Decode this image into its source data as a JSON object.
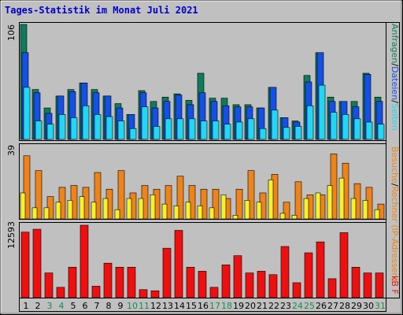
{
  "title": "Tages-Statistik im Monat Juli 2021",
  "colors": {
    "background": "#c0c0c0",
    "title": "#0000cc",
    "anfragen": "#0e7b5a",
    "dateien": "#1550e6",
    "seiten": "#22d6f4",
    "besuche": "#ee8419",
    "rechner": "#f7f02c",
    "kb": "#ee1010",
    "weekend_label": "#1b8a50"
  },
  "legends": {
    "top_anfragen": "Anfragen",
    "top_sep1": "/",
    "top_dateien": "Dateien",
    "top_sep2": "/",
    "top_seiten": "Seiten",
    "mid_besuche": "Besuche",
    "mid_sep": "/",
    "mid_rechner": "Rechner (IP-Adressen)",
    "bot_kb": "kB F"
  },
  "y_max_labels": {
    "top": "106",
    "middle": "39",
    "bottom": "12593"
  },
  "chart_data": [
    {
      "type": "bar",
      "name": "top",
      "x": [
        "1",
        "2",
        "3",
        "4",
        "5",
        "6",
        "7",
        "8",
        "9",
        "10",
        "11",
        "12",
        "13",
        "14",
        "15",
        "16",
        "17",
        "18",
        "19",
        "20",
        "21",
        "22",
        "23",
        "24",
        "25",
        "26",
        "27",
        "28",
        "29",
        "30",
        "31"
      ],
      "y_max": 106,
      "series": [
        {
          "name": "Anfragen",
          "values": [
            106,
            46,
            29,
            40,
            46,
            52,
            46,
            40,
            33,
            23,
            45,
            35,
            39,
            42,
            36,
            61,
            38,
            38,
            32,
            32,
            29,
            48,
            20,
            17,
            59,
            80,
            39,
            35,
            35,
            61,
            39
          ]
        },
        {
          "name": "Dateien",
          "values": [
            80,
            43,
            24,
            40,
            44,
            52,
            43,
            40,
            29,
            23,
            43,
            29,
            35,
            41,
            32,
            43,
            35,
            31,
            30,
            30,
            29,
            48,
            20,
            16,
            53,
            80,
            35,
            35,
            30,
            60,
            35
          ]
        },
        {
          "name": "Seiten",
          "values": [
            48,
            17,
            14,
            23,
            20,
            31,
            23,
            21,
            17,
            10,
            30,
            12,
            19,
            19,
            19,
            17,
            17,
            14,
            16,
            19,
            10,
            27,
            11,
            12,
            31,
            50,
            25,
            23,
            19,
            16,
            14
          ]
        }
      ],
      "categories_weekend": [
        3,
        4,
        10,
        11,
        17,
        18,
        24,
        25,
        31
      ]
    },
    {
      "type": "bar",
      "name": "middle",
      "x": [
        "1",
        "2",
        "3",
        "4",
        "5",
        "6",
        "7",
        "8",
        "9",
        "10",
        "11",
        "12",
        "13",
        "14",
        "15",
        "16",
        "17",
        "18",
        "19",
        "20",
        "21",
        "22",
        "23",
        "24",
        "25",
        "26",
        "27",
        "28",
        "29",
        "30",
        "31"
      ],
      "y_max": 39,
      "series": [
        {
          "name": "Besuche",
          "values": [
            34,
            26,
            12,
            17,
            18,
            17,
            25,
            16,
            26,
            14,
            18,
            16,
            18,
            23,
            18,
            16,
            16,
            11,
            16,
            26,
            14,
            24,
            9,
            20,
            13,
            13,
            35,
            30,
            19,
            17,
            8
          ]
        },
        {
          "name": "Rechner (IP-Adressen)",
          "values": [
            14,
            6,
            6,
            9,
            10,
            12,
            9,
            11,
            5,
            11,
            11,
            13,
            8,
            7,
            9,
            7,
            6,
            13,
            2,
            10,
            9,
            21,
            3,
            2,
            11,
            14,
            18,
            22,
            11,
            10,
            5
          ]
        }
      ]
    },
    {
      "type": "bar",
      "name": "bottom",
      "x": [
        "1",
        "2",
        "3",
        "4",
        "5",
        "6",
        "7",
        "8",
        "9",
        "10",
        "11",
        "12",
        "13",
        "14",
        "15",
        "16",
        "17",
        "18",
        "19",
        "20",
        "21",
        "22",
        "23",
        "24",
        "25",
        "26",
        "27",
        "28",
        "29",
        "30",
        "31"
      ],
      "y_max": 12593,
      "series": [
        {
          "name": "kB F",
          "values": [
            11400,
            11900,
            4300,
            1800,
            5300,
            12593,
            2000,
            6000,
            5300,
            5300,
            1400,
            1200,
            8600,
            11700,
            5300,
            4600,
            1800,
            5700,
            7300,
            4300,
            4600,
            4000,
            8900,
            2600,
            7800,
            9700,
            3300,
            11300,
            5300,
            4300,
            4300
          ]
        }
      ]
    }
  ]
}
